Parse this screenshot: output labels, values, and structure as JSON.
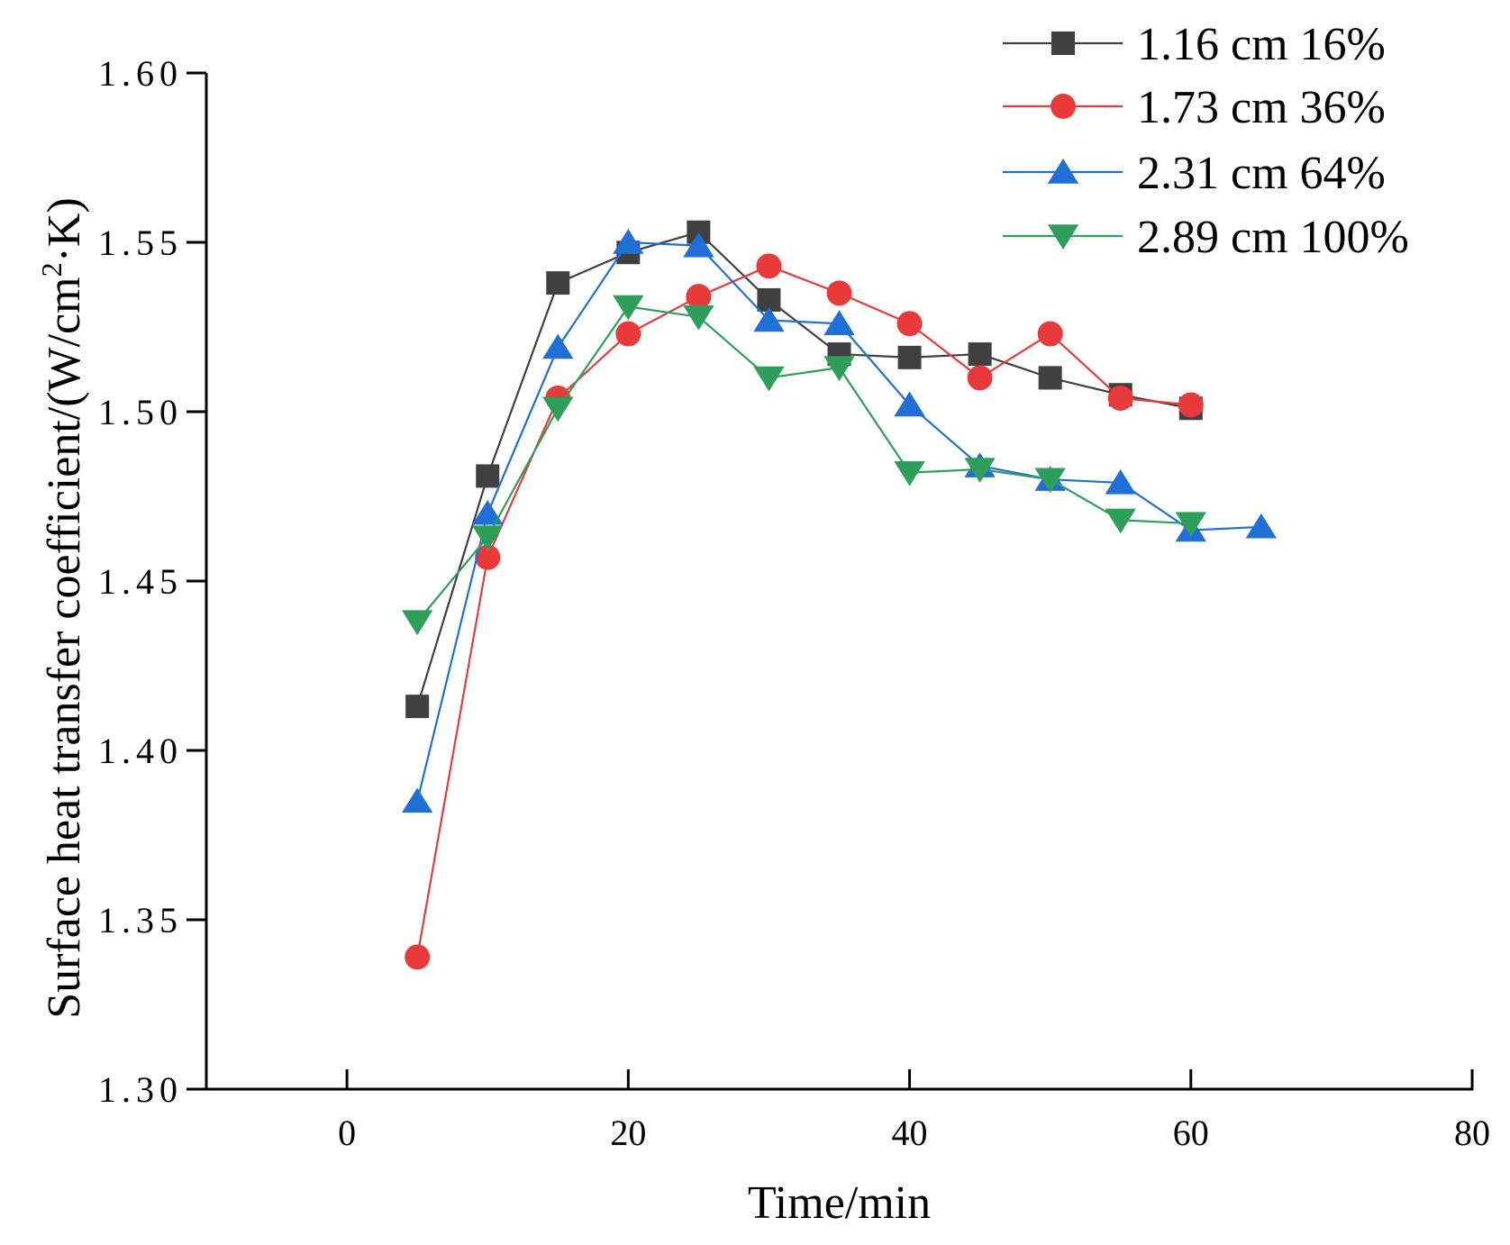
{
  "chart_data": {
    "type": "line",
    "title": "",
    "xlabel": "Time/min",
    "ylabel": "Surface heat transfer coefficient/(W/cm·K)",
    "ylabel_parts": {
      "before": "Surface heat transfer coefficient/(W/cm",
      "superscript": "2",
      "after": "·K)"
    },
    "xlim": [
      -10,
      80
    ],
    "ylim": [
      1.3,
      1.6
    ],
    "xticks": [
      0,
      20,
      40,
      60,
      80
    ],
    "xtick_labels": [
      "0",
      "20",
      "40",
      "60",
      "80"
    ],
    "yticks": [
      1.3,
      1.35,
      1.4,
      1.45,
      1.5,
      1.55,
      1.6
    ],
    "ytick_labels": [
      "1.30",
      "1.35",
      "1.40",
      "1.45",
      "1.50",
      "1.55",
      "1.60"
    ],
    "grid": false,
    "legend_position": "top-right",
    "series": [
      {
        "name": "1.16 cm 16%",
        "color": "#404040",
        "marker": "square",
        "x": [
          5,
          10,
          15,
          20,
          25,
          30,
          35,
          40,
          45,
          50,
          55,
          60
        ],
        "y": [
          1.413,
          1.481,
          1.538,
          1.547,
          1.553,
          1.533,
          1.517,
          1.516,
          1.517,
          1.51,
          1.505,
          1.501
        ]
      },
      {
        "name": "1.73 cm 36%",
        "color": "#e83a3a",
        "marker": "circle",
        "x": [
          5,
          10,
          15,
          20,
          25,
          30,
          35,
          40,
          45,
          50,
          55,
          60
        ],
        "y": [
          1.339,
          1.457,
          1.504,
          1.523,
          1.534,
          1.543,
          1.535,
          1.526,
          1.51,
          1.523,
          1.504,
          1.502
        ]
      },
      {
        "name": "2.31 cm 64%",
        "color": "#1f6fd6",
        "marker": "triangle-up",
        "x": [
          5,
          10,
          15,
          20,
          25,
          30,
          35,
          40,
          45,
          50,
          55,
          60,
          65
        ],
        "y": [
          1.385,
          1.47,
          1.519,
          1.55,
          1.549,
          1.527,
          1.526,
          1.502,
          1.484,
          1.48,
          1.479,
          1.465,
          1.466
        ]
      },
      {
        "name": "2.89 cm 100%",
        "color": "#2e9e5b",
        "marker": "triangle-down",
        "x": [
          5,
          10,
          15,
          20,
          25,
          30,
          35,
          40,
          45,
          50,
          55,
          60
        ],
        "y": [
          1.438,
          1.463,
          1.501,
          1.531,
          1.528,
          1.51,
          1.513,
          1.482,
          1.483,
          1.48,
          1.468,
          1.467
        ]
      }
    ]
  }
}
